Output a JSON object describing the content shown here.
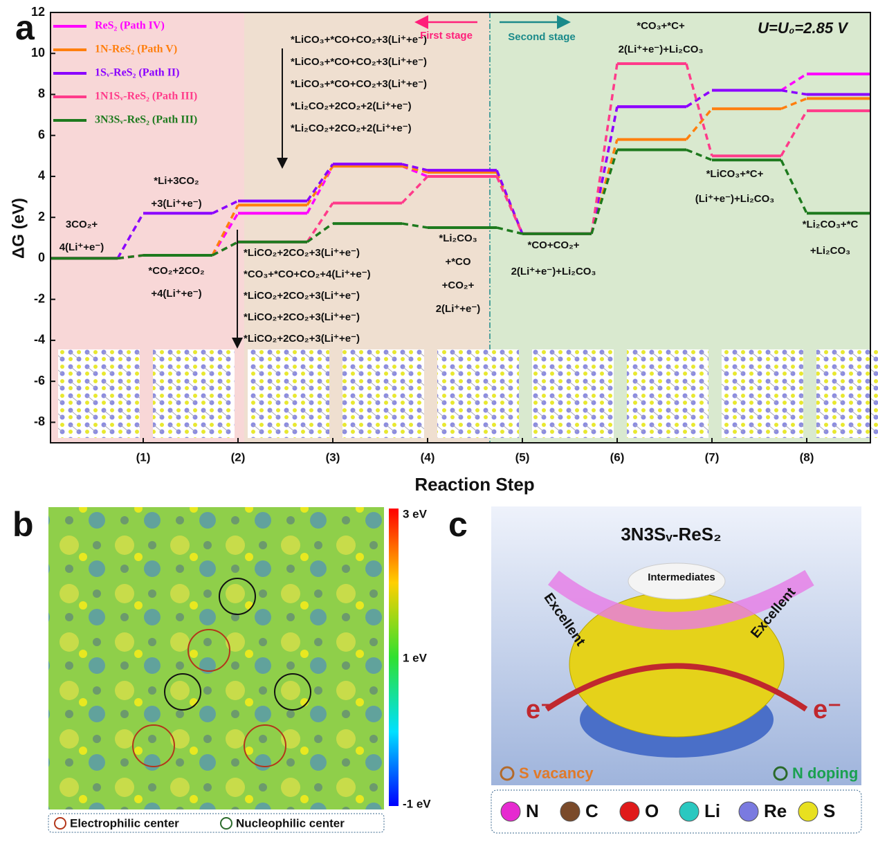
{
  "chart_data": {
    "type": "line",
    "panel_label": "a",
    "x_label": "Reaction Step",
    "y_label": "ΔG (eV)",
    "categories": [
      null,
      "(1)",
      "(2)",
      "(3)",
      "(4)",
      "(5)",
      "(6)",
      "(7)",
      "(8)"
    ],
    "ylim": [
      -9,
      12
    ],
    "yticks": [
      -8,
      -6,
      -4,
      -2,
      0,
      2,
      4,
      6,
      8,
      10,
      12
    ],
    "legend": "top-left",
    "series": [
      {
        "name": "ReS₂ (Path IV)",
        "color": "#ff00ff",
        "values": [
          0,
          0.15,
          2.2,
          4.5,
          4.0,
          1.2,
          7.4,
          8.2,
          9.0
        ]
      },
      {
        "name": "1N-ReS₂ (Path V)",
        "color": "#ff7f0e",
        "values": [
          0,
          0.15,
          2.6,
          4.5,
          4.2,
          1.2,
          5.8,
          7.3,
          7.8
        ]
      },
      {
        "name": "1Sᵥ-ReS₂ (Path II)",
        "color": "#8a00ff",
        "values": [
          0,
          2.2,
          2.8,
          4.6,
          4.3,
          1.2,
          7.4,
          8.2,
          8.0
        ]
      },
      {
        "name": "1N1Sᵥ-ReS₂ (Path III)",
        "color": "#ff3b8a",
        "values": [
          0,
          0.15,
          0.8,
          2.7,
          4.0,
          1.2,
          9.5,
          5.0,
          7.2
        ]
      },
      {
        "name": "3N3Sᵥ-ReS₂ (Path III)",
        "color": "#1e7a1e",
        "values": [
          0,
          0.15,
          0.8,
          1.7,
          1.5,
          1.2,
          5.3,
          4.8,
          2.2
        ]
      }
    ],
    "stages": [
      "First stage",
      "Second stage"
    ],
    "potential_label": "U=U₀=2.85 V",
    "annotations": [
      [
        "3CO₂+",
        "4(Li⁺+e⁻)"
      ],
      [
        "*Li+3CO₂",
        "+3(Li⁺+e⁻)"
      ],
      [
        "*CO₂+2CO₂",
        "+4(Li⁺+e⁻)"
      ],
      [
        "*LiCO₃+*CO+CO₂+3(Li⁺+e⁻)",
        "*LiCO₃+*CO+CO₂+3(Li⁺+e⁻)",
        "*LiCO₃+*CO+CO₂+3(Li⁺+e⁻)",
        "*Li₂CO₂+2CO₂+2(Li⁺+e⁻)",
        "*Li₂CO₂+2CO₂+2(Li⁺+e⁻)"
      ],
      [
        "*LiCO₂+2CO₂+3(Li⁺+e⁻)",
        "*CO₃+*CO+CO₂+4(Li⁺+e⁻)",
        "*LiCO₂+2CO₂+3(Li⁺+e⁻)",
        "*LiCO₂+2CO₂+3(Li⁺+e⁻)",
        "*LiCO₂+2CO₂+3(Li⁺+e⁻)"
      ],
      [
        "*Li₂CO₃",
        "+*CO",
        "+CO₂+",
        "2(Li⁺+e⁻)"
      ],
      [
        "*CO+CO₂+",
        "2(Li⁺+e⁻)+Li₂CO₃"
      ],
      [
        "*CO₃+*C+",
        "2(Li⁺+e⁻)+Li₂CO₃"
      ],
      [
        "*LiCO₃+*C+",
        "(Li⁺+e⁻)+Li₂CO₃"
      ],
      [
        "*Li₂CO₃+*C",
        "+Li₂CO₃"
      ]
    ]
  },
  "panel_b": {
    "label": "b",
    "colorbar": [
      "3 eV",
      "1 eV",
      "-1 eV"
    ],
    "legend": [
      "Electrophilic center",
      "Nucleophilic center"
    ]
  },
  "panel_c": {
    "label": "c",
    "title": "3N3Sᵥ-ReS₂",
    "intermediates": "Intermediates",
    "arrows": [
      "Excellent",
      "Excellent"
    ],
    "electrons": [
      "e⁻",
      "e⁻"
    ],
    "sites": [
      "S vacancy",
      "N doping"
    ],
    "atoms": [
      "N",
      "C",
      "O",
      "Li",
      "Re",
      "S"
    ]
  }
}
